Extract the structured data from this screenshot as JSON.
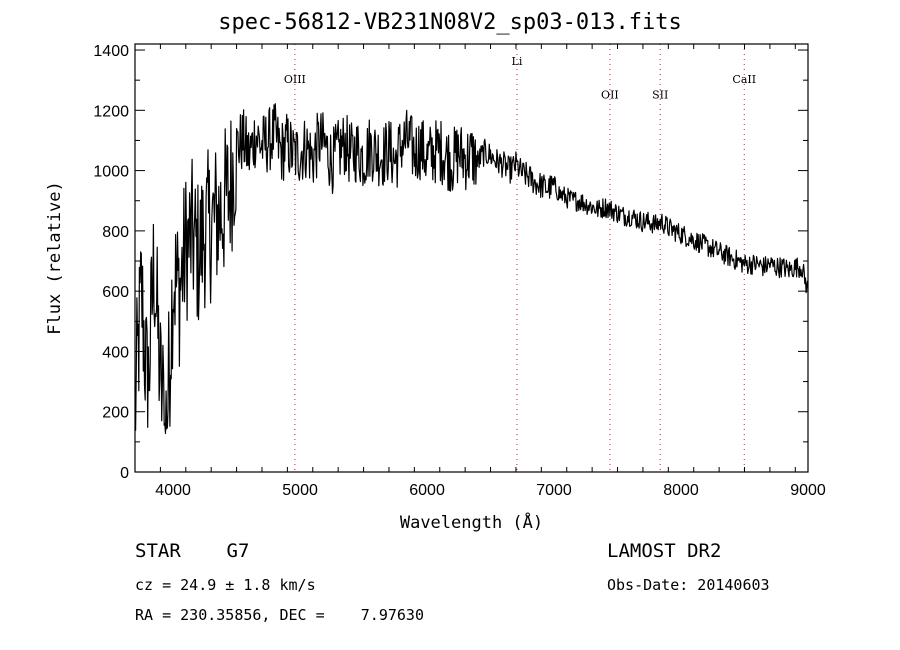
{
  "title": "spec-56812-VB231N08V2_sp03-013.fits",
  "info": {
    "object_class": "STAR    G7",
    "survey": "LAMOST DR2",
    "cz": "cz = 24.9 ± 1.8 km/s",
    "obs_date": "Obs-Date: 20140603",
    "radec": "RA = 230.35856, DEC =    7.97630"
  },
  "chart_data": {
    "type": "line",
    "xlabel": "Wavelength (Å)",
    "ylabel": "Flux (relative)",
    "xlim": [
      3700,
      9000
    ],
    "ylim": [
      0,
      1420
    ],
    "xticks": [
      4000,
      5000,
      6000,
      7000,
      8000,
      9000
    ],
    "yticks": [
      0,
      200,
      400,
      600,
      800,
      1000,
      1200,
      1400
    ],
    "line_color": "#000000",
    "marker_color": "#cc2222",
    "lines": [
      {
        "name": "OIII",
        "x": 4959,
        "label_y": 1290
      },
      {
        "name": "Li",
        "x": 6708,
        "label_y": 1350
      },
      {
        "name": "OII",
        "x": 7440,
        "label_y": 1240
      },
      {
        "name": "SII",
        "x": 7836,
        "label_y": 1240
      },
      {
        "name": "CaII",
        "x": 8498,
        "label_y": 1290
      }
    ],
    "series": [
      {
        "x": [
          3700,
          3750,
          3800,
          3850,
          3900,
          3950,
          4000,
          4050,
          4100,
          4150,
          4200,
          4250,
          4300,
          4350,
          4400,
          4450,
          4500,
          4550,
          4600,
          4650,
          4700,
          4750,
          4800,
          4850,
          4900,
          4950,
          5000,
          5050,
          5100,
          5150,
          5200,
          5250,
          5300,
          5350,
          5400,
          5450,
          5500,
          5550,
          5600,
          5650,
          5700,
          5750,
          5800,
          5850,
          5900,
          5950,
          6000,
          6050,
          6100,
          6150,
          6200,
          6250,
          6300,
          6350,
          6400,
          6450,
          6500,
          6550,
          6600,
          6650,
          6700,
          6750,
          6800,
          6850,
          6900,
          6950,
          7000,
          7050,
          7100,
          7150,
          7200,
          7250,
          7300,
          7350,
          7400,
          7450,
          7500,
          7550,
          7600,
          7650,
          7700,
          7750,
          7800,
          7850,
          7900,
          7950,
          8000,
          8050,
          8100,
          8150,
          8200,
          8250,
          8300,
          8350,
          8400,
          8450,
          8500,
          8550,
          8600,
          8650,
          8700,
          8750,
          8800,
          8850,
          8900,
          8950,
          9000
        ],
        "y": [
          200,
          600,
          250,
          700,
          300,
          150,
          650,
          600,
          750,
          780,
          720,
          800,
          820,
          850,
          880,
          950,
          1080,
          1100,
          1050,
          1120,
          1080,
          1100,
          1120,
          1060,
          1090,
          1050,
          1060,
          1080,
          1040,
          1100,
          1080,
          1030,
          1060,
          1090,
          1050,
          1070,
          1040,
          1080,
          1060,
          1050,
          1070,
          1030,
          1090,
          1100,
          1060,
          1080,
          1040,
          1060,
          1070,
          1050,
          1030,
          1060,
          1040,
          1050,
          1030,
          1060,
          1050,
          1030,
          1020,
          1000,
          1020,
          990,
          980,
          960,
          950,
          940,
          950,
          920,
          910,
          900,
          900,
          890,
          880,
          870,
          880,
          870,
          860,
          850,
          850,
          840,
          830,
          830,
          820,
          830,
          810,
          800,
          790,
          780,
          770,
          760,
          750,
          740,
          730,
          720,
          710,
          700,
          690,
          690,
          690,
          680,
          690,
          680,
          680,
          670,
          680,
          680,
          600
        ]
      }
    ]
  }
}
